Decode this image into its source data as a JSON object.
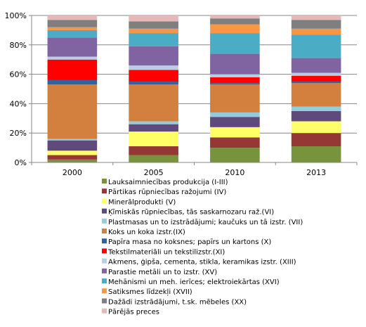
{
  "chart_data": {
    "type": "bar",
    "stacked": true,
    "percent": true,
    "categories": [
      "2000",
      "2005",
      "2010",
      "2013"
    ],
    "y_ticks": [
      "0%",
      "20%",
      "40%",
      "60%",
      "80%",
      "100%"
    ],
    "ylim": [
      0,
      100
    ],
    "grid": true,
    "legend_position": "bottom",
    "series": [
      {
        "name": "Lauksaimniecības produkcija (I-III)",
        "color": "#77933C",
        "values": [
          2,
          5,
          10,
          11
        ]
      },
      {
        "name": "Pārtikas rūpniecības ražojumi (IV)",
        "color": "#953735",
        "values": [
          3,
          6,
          7,
          9
        ]
      },
      {
        "name": "Minerālprodukti (V)",
        "color": "#FFFF66",
        "values": [
          3,
          10,
          7,
          8
        ]
      },
      {
        "name": "Ķīmiskās rūpniecības, tās saskarnozaru raž.(VI)",
        "color": "#604A7B",
        "values": [
          7,
          5,
          7,
          7
        ]
      },
      {
        "name": "Plastmasas un to izstrādājumi; kaučuks un tā izstr. (VII)",
        "color": "#93CDDD",
        "values": [
          1,
          2,
          3,
          3
        ]
      },
      {
        "name": "Koks un koka izstr.(IX)",
        "color": "#D3803F",
        "values": [
          37,
          25,
          19,
          16
        ]
      },
      {
        "name": "Papīra masa no koksnes; papīrs un kartons (X)",
        "color": "#2E63A4",
        "values": [
          3,
          2,
          1,
          1
        ]
      },
      {
        "name": "Tekstilmateriāli un tekstilizstr.(XI)",
        "color": "#FF0000",
        "values": [
          14,
          8,
          4,
          4
        ]
      },
      {
        "name": "Akmens, ģipša, cementa, stikla, keramikas izstr. (XIII)",
        "color": "#B9CDE5",
        "values": [
          2,
          3,
          2,
          2
        ]
      },
      {
        "name": "Parastie metāli un to izstr. (XV)",
        "color": "#8064A2",
        "values": [
          13,
          13,
          14,
          10
        ]
      },
      {
        "name": "Mehānismi un meh. ierīces; elektroiekārtas (XVI)",
        "color": "#4BACC6",
        "values": [
          5,
          9,
          14,
          16
        ]
      },
      {
        "name": "Satiksmes līdzekļi (XVII)",
        "color": "#F79646",
        "values": [
          2,
          3,
          6,
          4
        ]
      },
      {
        "name": "Dažādi izstrādājumi, t.sk. mēbeles (XX)",
        "color": "#7F7F7F",
        "values": [
          5,
          5,
          4,
          6
        ]
      },
      {
        "name": "Pārējās preces",
        "color": "#E6B9B8",
        "values": [
          3,
          4,
          2,
          3
        ]
      }
    ]
  }
}
